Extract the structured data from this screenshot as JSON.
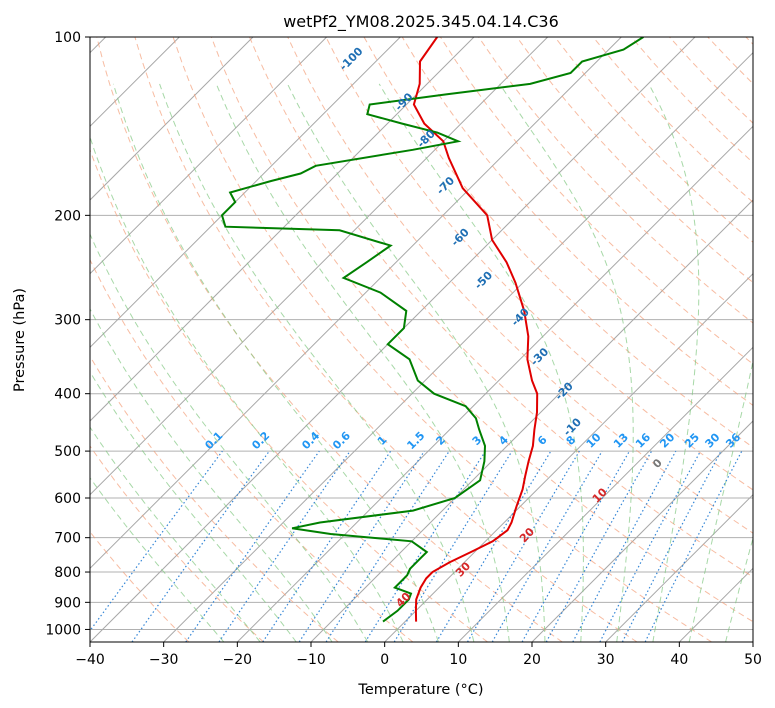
{
  "chart_data": {
    "type": "line",
    "title": "wetPf2_YM08.2025.345.04.14.C36",
    "xlabel": "Temperature (°C)",
    "ylabel": "Pressure (hPa)",
    "xlim": [
      -40,
      50
    ],
    "ylim": [
      1050,
      100
    ],
    "yscale": "log",
    "skew": "45°",
    "x_ticks": [
      "−40",
      "−30",
      "−20",
      "−10",
      "0",
      "10",
      "20",
      "30",
      "40",
      "50"
    ],
    "y_ticks": [
      "100",
      "200",
      "300",
      "400",
      "500",
      "600",
      "700",
      "800",
      "900",
      "1000"
    ],
    "grid": true,
    "series": [
      {
        "color": "#e00000",
        "role": "temperature",
        "points": [
          [
            1.5,
            970
          ],
          [
            0,
            930
          ],
          [
            -1.5,
            890
          ],
          [
            -2.5,
            850
          ],
          [
            -3,
            820
          ],
          [
            -3,
            800
          ],
          [
            -2,
            770
          ],
          [
            -0.5,
            740
          ],
          [
            1,
            710
          ],
          [
            1.5,
            680
          ],
          [
            1,
            660
          ],
          [
            -0.5,
            620
          ],
          [
            -2,
            580
          ],
          [
            -3.5,
            550
          ],
          [
            -5,
            520
          ],
          [
            -6.5,
            490
          ],
          [
            -8.5,
            460
          ],
          [
            -10.5,
            430
          ],
          [
            -13,
            400
          ],
          [
            -15.5,
            380
          ],
          [
            -19,
            350
          ],
          [
            -22,
            320
          ],
          [
            -26,
            290
          ],
          [
            -31,
            260
          ],
          [
            -35,
            240
          ],
          [
            -40,
            220
          ],
          [
            -44,
            200
          ],
          [
            -51,
            180
          ],
          [
            -57,
            160
          ],
          [
            -60,
            150
          ],
          [
            -65,
            140
          ],
          [
            -69,
            130
          ],
          [
            -71,
            120
          ],
          [
            -74,
            110
          ],
          [
            -75,
            100
          ]
        ]
      },
      {
        "color": "#008000",
        "role": "dewpoint",
        "points": [
          [
            -3,
            970
          ],
          [
            -2.5,
            930
          ],
          [
            -2.5,
            890
          ],
          [
            -3,
            870
          ],
          [
            -6,
            850
          ],
          [
            -6,
            830
          ],
          [
            -6,
            810
          ],
          [
            -6.5,
            790
          ],
          [
            -6.5,
            760
          ],
          [
            -6.5,
            740
          ],
          [
            -10,
            710
          ],
          [
            -22,
            690
          ],
          [
            -28,
            675
          ],
          [
            -25,
            660
          ],
          [
            -14,
            630
          ],
          [
            -10,
            600
          ],
          [
            -9,
            560
          ],
          [
            -11,
            520
          ],
          [
            -13,
            490
          ],
          [
            -16,
            460
          ],
          [
            -18,
            440
          ],
          [
            -21,
            420
          ],
          [
            -27,
            400
          ],
          [
            -31,
            380
          ],
          [
            -35,
            350
          ],
          [
            -40,
            330
          ],
          [
            -40,
            310
          ],
          [
            -42,
            290
          ],
          [
            -48,
            270
          ],
          [
            -55,
            255
          ],
          [
            -54,
            240
          ],
          [
            -53,
            225
          ],
          [
            -62,
            212
          ],
          [
            -78,
            209
          ],
          [
            -80,
            200
          ],
          [
            -80,
            190
          ],
          [
            -82,
            183
          ],
          [
            -78,
            175
          ],
          [
            -75,
            170
          ],
          [
            -74,
            165
          ],
          [
            -63,
            155
          ],
          [
            -58,
            150
          ],
          [
            -62,
            145
          ],
          [
            -68,
            140
          ],
          [
            -74,
            135
          ],
          [
            -75,
            130
          ],
          [
            -66,
            125
          ],
          [
            -56,
            120
          ],
          [
            -52,
            115
          ],
          [
            -52,
            110
          ],
          [
            -48,
            105
          ],
          [
            -47,
            100
          ]
        ]
      }
    ],
    "line_labels": {
      "dry_adiabats": [
        "-100",
        "-90",
        "-80",
        "-70",
        "-60",
        "-50",
        "-40",
        "-30",
        "-20",
        "-10"
      ],
      "moist_adiabats": [
        "0",
        "10",
        "20",
        "30",
        "40"
      ],
      "mixing_ratios": [
        "0.1",
        "0.2",
        "0.4",
        "0.6",
        "1",
        "1.5",
        "2",
        "3",
        "4",
        "6",
        "8",
        "10",
        "13",
        "16",
        "20",
        "25",
        "30",
        "36"
      ]
    }
  }
}
